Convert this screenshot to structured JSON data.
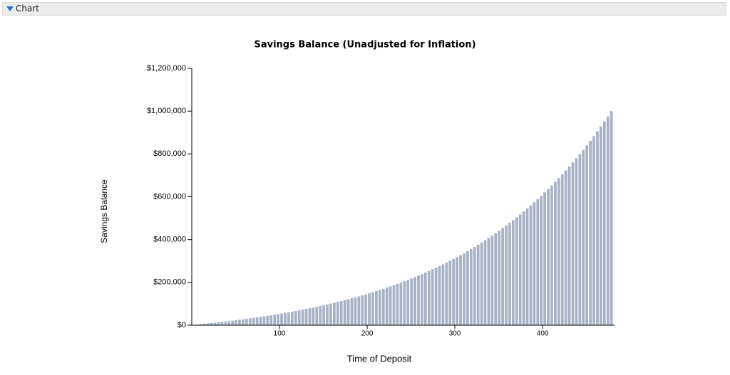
{
  "panel": {
    "title": "Chart"
  },
  "chart_data": {
    "type": "bar",
    "title": "Savings  Balance (Unadjusted for Inflation)",
    "x_label": "Time of Deposit",
    "y_label": "Savings Balance",
    "color": "#a8b2c5",
    "x": [
      4,
      8,
      12,
      16,
      20,
      24,
      28,
      32,
      36,
      40,
      44,
      48,
      52,
      56,
      60,
      64,
      68,
      72,
      76,
      80,
      84,
      88,
      92,
      96,
      100,
      104,
      108,
      112,
      116,
      120,
      124,
      128,
      132,
      136,
      140,
      144,
      148,
      152,
      156,
      160,
      164,
      168,
      172,
      176,
      180,
      184,
      188,
      192,
      196,
      200,
      204,
      208,
      212,
      216,
      220,
      224,
      228,
      232,
      236,
      240,
      244,
      248,
      252,
      256,
      260,
      264,
      268,
      272,
      276,
      280,
      284,
      288,
      292,
      296,
      300,
      304,
      308,
      312,
      316,
      320,
      324,
      328,
      332,
      336,
      340,
      344,
      348,
      352,
      356,
      360,
      364,
      368,
      372,
      376,
      380,
      384,
      388,
      392,
      396,
      400,
      404,
      408,
      412,
      416,
      420,
      424,
      428,
      432,
      436,
      440,
      444,
      448,
      452,
      456,
      460,
      464,
      468,
      472,
      476,
      480
    ],
    "values": [
      1500,
      3100,
      4700,
      6400,
      8100,
      9800,
      11600,
      13400,
      15300,
      17200,
      19200,
      21100,
      23200,
      25300,
      27400,
      29600,
      31900,
      34100,
      36500,
      38900,
      41400,
      43900,
      46400,
      49100,
      51800,
      54500,
      57400,
      60300,
      63200,
      66300,
      69400,
      72500,
      75800,
      79100,
      82500,
      86000,
      89600,
      93200,
      96900,
      100800,
      104700,
      108700,
      112800,
      117000,
      121200,
      125600,
      130100,
      134700,
      139400,
      144300,
      149200,
      154200,
      159400,
      164700,
      170100,
      175600,
      181300,
      187100,
      193100,
      199100,
      205300,
      211700,
      218200,
      224900,
      231700,
      238700,
      245900,
      253200,
      260700,
      268300,
      276200,
      284200,
      292400,
      300800,
      309400,
      318200,
      327200,
      336500,
      345900,
      355600,
      365500,
      375600,
      386000,
      396600,
      407400,
      418500,
      429900,
      441500,
      453400,
      465600,
      478100,
      490900,
      503900,
      517300,
      531000,
      545000,
      559300,
      574000,
      589000,
      604400,
      620100,
      636200,
      652700,
      669600,
      686800,
      704500,
      722600,
      741100,
      760000,
      779400,
      799200,
      819500,
      840300,
      861600,
      883300,
      905600,
      928400,
      951800,
      975600,
      1000100
    ],
    "xlim": [
      0,
      482
    ],
    "xticks": [
      100,
      200,
      300,
      400
    ],
    "ylim": [
      0,
      1200000
    ],
    "yticks": [
      {
        "value": 0,
        "label": "$0"
      },
      {
        "value": 200000,
        "label": "$200,000"
      },
      {
        "value": 400000,
        "label": "$400,000"
      },
      {
        "value": 600000,
        "label": "$600,000"
      },
      {
        "value": 800000,
        "label": "$800,000"
      },
      {
        "value": 1000000,
        "label": "$1,000,000"
      },
      {
        "value": 1200000,
        "label": "$1,200,000"
      }
    ]
  }
}
